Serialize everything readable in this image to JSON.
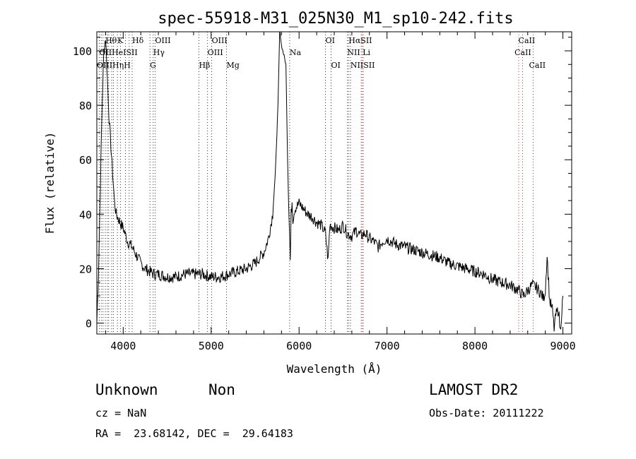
{
  "chart_data": {
    "type": "line",
    "title": "spec-55918-M31_025N30_M1_sp10-242.fits",
    "xlabel": "Wavelength (Å)",
    "ylabel": "Flux (relative)",
    "xlim": [
      3700,
      9100
    ],
    "ylim": [
      -4,
      107
    ],
    "x_ticks": [
      4000,
      5000,
      6000,
      7000,
      8000,
      9000
    ],
    "y_ticks": [
      0,
      20,
      40,
      60,
      80,
      100
    ],
    "grid": false,
    "legend": "none",
    "series": [
      {
        "x": [
          3700,
          3720,
          3740,
          3760,
          3780,
          3800,
          3820,
          3840,
          3860,
          3880,
          3900,
          3920,
          3950,
          3980,
          4000,
          4050,
          4100,
          4150,
          4200,
          4250,
          4300,
          4350,
          4400,
          4500,
          4600,
          4700,
          4800,
          4900,
          5000,
          5100,
          5200,
          5300,
          5400,
          5500,
          5550,
          5600,
          5650,
          5700,
          5730,
          5760,
          5780,
          5790,
          5800,
          5830,
          5850,
          5870,
          5880,
          5890,
          5900,
          5910,
          5920,
          5930,
          5950,
          6000,
          6050,
          6100,
          6150,
          6200,
          6250,
          6300,
          6330,
          6350,
          6400,
          6450,
          6500,
          6550,
          6600,
          6650,
          6700,
          6750,
          6800,
          6850,
          6900,
          6950,
          7000,
          7100,
          7200,
          7300,
          7400,
          7500,
          7600,
          7700,
          7800,
          7900,
          8000,
          8100,
          8200,
          8300,
          8400,
          8450,
          8500,
          8550,
          8600,
          8650,
          8700,
          8750,
          8780,
          8800,
          8820,
          8850,
          8880,
          8900,
          8920,
          8950,
          8970,
          9000
        ],
        "y": [
          0,
          20,
          50,
          80,
          100,
          105,
          90,
          75,
          65,
          55,
          45,
          40,
          38,
          36,
          35,
          30,
          28,
          25,
          22,
          20,
          19,
          18,
          18,
          17,
          17,
          18,
          18,
          18,
          17,
          17,
          18,
          19,
          20,
          22,
          24,
          26,
          31,
          40,
          55,
          80,
          107,
          105,
          102,
          98,
          95,
          60,
          45,
          35,
          23,
          40,
          45,
          38,
          42,
          44,
          42,
          40,
          39,
          37,
          36,
          33,
          23,
          36,
          35,
          34,
          36,
          33,
          32,
          34,
          32,
          33,
          31,
          30,
          28,
          30,
          31,
          29,
          28,
          27,
          26,
          25,
          24,
          22,
          21,
          20,
          19,
          18,
          16,
          15,
          14,
          13,
          12,
          10,
          12,
          14,
          13,
          11,
          9,
          12,
          25,
          8,
          5,
          -2,
          3,
          5,
          -3,
          10
        ]
      }
    ],
    "lines_row1": [
      {
        "label": "Hθ",
        "x": 3797
      },
      {
        "label": "K",
        "x": 3934
      },
      {
        "label": "Hδ",
        "x": 4102
      },
      {
        "label": "OIII",
        "x": 4363
      },
      {
        "label": "OIII",
        "x": 5007
      },
      {
        "label": "OI",
        "x": 6300
      },
      {
        "label": "HαSII",
        "x": 6563
      }
    ],
    "lines_row2": [
      {
        "label": "OIIHeISII",
        "x": 3727
      },
      {
        "label": "Hγ",
        "x": 4341
      },
      {
        "label": "OIII",
        "x": 4959
      },
      {
        "label": "Na",
        "x": 5893
      },
      {
        "label": "NII Li",
        "x": 6548
      }
    ],
    "lines_row3": [
      {
        "label": "OIIIHηH",
        "x": 3700
      },
      {
        "label": "G",
        "x": 4304
      },
      {
        "label": "Hβ",
        "x": 4861
      },
      {
        "label": "Mg",
        "x": 5175
      },
      {
        "label": "OI",
        "x": 6364
      },
      {
        "label": "NIISII",
        "x": 6584
      }
    ],
    "calcium": [
      {
        "label": "CaII",
        "x": 8542,
        "row": 1
      },
      {
        "label": "CaII",
        "x": 8498,
        "row": 2
      },
      {
        "label": "CaII",
        "x": 8662,
        "row": 3
      }
    ],
    "dotted_lines_x": [
      3727,
      3750,
      3771,
      3797,
      3820,
      3835,
      3869,
      3889,
      3934,
      3968,
      4026,
      4068,
      4102,
      4304,
      4341,
      4363,
      4861,
      4959,
      5007,
      5175,
      5893,
      6300,
      6364,
      6548,
      6563,
      6584,
      6707,
      6717,
      6731,
      8498,
      8542,
      8662
    ]
  },
  "info": {
    "class_name": "Unknown",
    "subclass": "Non",
    "survey": "LAMOST DR2",
    "cz": "cz = NaN",
    "obs_date": "Obs-Date: 20111222",
    "coords": "RA =  23.68142, DEC =  29.64183"
  }
}
